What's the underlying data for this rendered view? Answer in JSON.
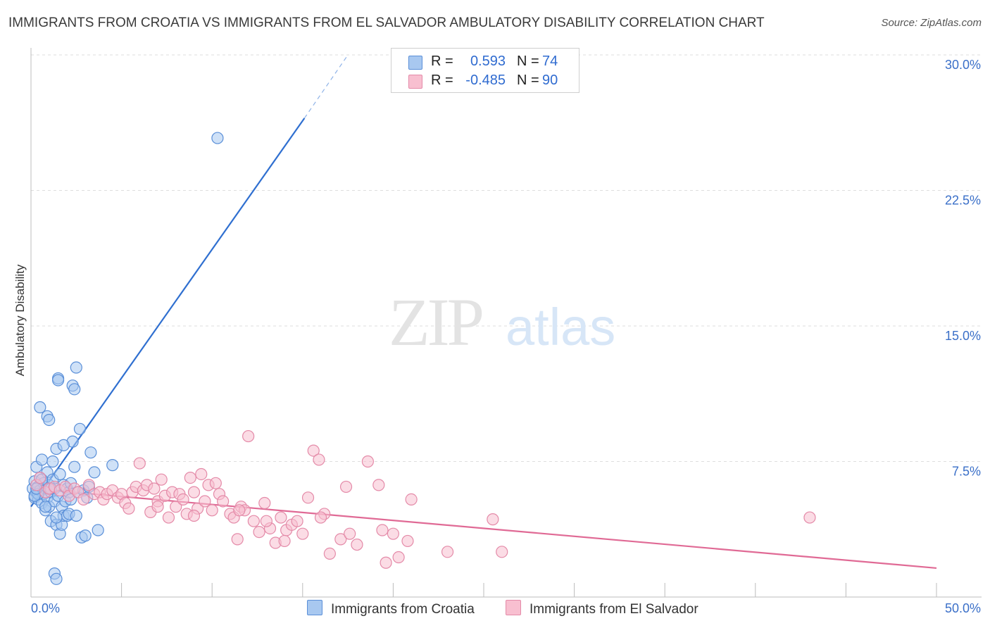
{
  "title": "IMMIGRANTS FROM CROATIA VS IMMIGRANTS FROM EL SALVADOR AMBULATORY DISABILITY CORRELATION CHART",
  "source": "Source: ZipAtlas.com",
  "watermark": {
    "zip": "ZIP",
    "atlas": "atlas"
  },
  "legend_stats": [
    {
      "r_label": "R =",
      "r_value": "0.593",
      "n_label": "N =",
      "n_value": "74",
      "color": "#a8c8f0",
      "border": "#5a8fd8"
    },
    {
      "r_label": "R =",
      "r_value": "-0.485",
      "n_label": "N =",
      "n_value": "90",
      "color": "#f8bfd0",
      "border": "#e48aa8"
    }
  ],
  "bottom_legend": [
    {
      "label": "Immigrants from Croatia",
      "color": "#a8c8f0",
      "border": "#5a8fd8"
    },
    {
      "label": "Immigrants from El Salvador",
      "color": "#f8bfd0",
      "border": "#e48aa8"
    }
  ],
  "chart_data": {
    "type": "scatter",
    "title": "IMMIGRANTS FROM CROATIA VS IMMIGRANTS FROM EL SALVADOR AMBULATORY DISABILITY CORRELATION CHART",
    "xlabel": "",
    "ylabel": "Ambulatory Disability",
    "xlim": [
      0,
      50
    ],
    "ylim": [
      0,
      30
    ],
    "x_tick_labels": [
      "0.0%",
      "50.0%"
    ],
    "y_ticks": [
      7.5,
      15,
      22.5,
      30
    ],
    "y_tick_labels": [
      "7.5%",
      "15.0%",
      "22.5%",
      "30.0%"
    ],
    "grid": true,
    "legend_position": "top-center",
    "series": [
      {
        "name": "Immigrants from Croatia",
        "color": "#5a8fd8",
        "fill": "#a8c8f0",
        "trend": {
          "x": [
            0,
            15.1
          ],
          "y": [
            5.0,
            26.5
          ],
          "dashed_to": [
            17.5,
            30.0
          ]
        },
        "points": [
          [
            0.1,
            6.0
          ],
          [
            0.2,
            5.5
          ],
          [
            0.2,
            6.4
          ],
          [
            0.3,
            5.8
          ],
          [
            0.3,
            7.2
          ],
          [
            0.4,
            6.1
          ],
          [
            0.4,
            5.4
          ],
          [
            0.5,
            6.6
          ],
          [
            0.5,
            5.9
          ],
          [
            0.6,
            5.2
          ],
          [
            0.6,
            7.6
          ],
          [
            0.7,
            6.3
          ],
          [
            0.7,
            5.7
          ],
          [
            0.8,
            4.8
          ],
          [
            0.8,
            6.0
          ],
          [
            0.9,
            5.5
          ],
          [
            0.9,
            6.9
          ],
          [
            1.0,
            5.0
          ],
          [
            1.0,
            6.2
          ],
          [
            1.1,
            4.2
          ],
          [
            1.1,
            5.8
          ],
          [
            1.2,
            6.5
          ],
          [
            1.2,
            7.5
          ],
          [
            1.3,
            5.3
          ],
          [
            1.3,
            6.0
          ],
          [
            1.4,
            4.0
          ],
          [
            1.4,
            8.2
          ],
          [
            1.5,
            5.6
          ],
          [
            1.5,
            12.1
          ],
          [
            1.6,
            3.5
          ],
          [
            1.6,
            6.8
          ],
          [
            1.7,
            4.0
          ],
          [
            1.7,
            5.0
          ],
          [
            1.8,
            4.5
          ],
          [
            1.8,
            6.2
          ],
          [
            1.9,
            5.3
          ],
          [
            2.0,
            4.5
          ],
          [
            2.0,
            6.0
          ],
          [
            2.1,
            4.6
          ],
          [
            2.1,
            5.8
          ],
          [
            2.2,
            5.4
          ],
          [
            2.2,
            6.3
          ],
          [
            2.3,
            11.7
          ],
          [
            2.3,
            8.6
          ],
          [
            2.4,
            7.2
          ],
          [
            2.5,
            12.7
          ],
          [
            2.5,
            4.5
          ],
          [
            2.6,
            5.8
          ],
          [
            2.7,
            9.3
          ],
          [
            2.8,
            3.3
          ],
          [
            2.9,
            5.9
          ],
          [
            3.0,
            3.4
          ],
          [
            3.1,
            5.5
          ],
          [
            3.2,
            6.1
          ],
          [
            3.3,
            8.0
          ],
          [
            3.5,
            6.9
          ],
          [
            3.7,
            3.7
          ],
          [
            0.5,
            10.5
          ],
          [
            0.9,
            10.0
          ],
          [
            1.5,
            12.0
          ],
          [
            2.4,
            11.5
          ],
          [
            1.8,
            8.4
          ],
          [
            1.0,
            9.8
          ],
          [
            0.4,
            5.7
          ],
          [
            0.2,
            5.6
          ],
          [
            0.6,
            6.5
          ],
          [
            1.3,
            1.3
          ],
          [
            1.4,
            4.4
          ],
          [
            0.8,
            5.0
          ],
          [
            1.1,
            6.0
          ],
          [
            1.4,
            1.0
          ],
          [
            10.3,
            25.4
          ],
          [
            4.5,
            7.3
          ],
          [
            0.3,
            6.0
          ]
        ]
      },
      {
        "name": "Immigrants from El Salvador",
        "color": "#e48aa8",
        "fill": "#f8bfd0",
        "trend": {
          "x": [
            0,
            50
          ],
          "y": [
            6.0,
            1.6
          ]
        },
        "points": [
          [
            0.3,
            6.2
          ],
          [
            0.5,
            6.6
          ],
          [
            0.8,
            5.8
          ],
          [
            1.0,
            6.0
          ],
          [
            1.3,
            6.1
          ],
          [
            1.6,
            5.9
          ],
          [
            1.9,
            6.1
          ],
          [
            2.1,
            5.6
          ],
          [
            2.4,
            6.0
          ],
          [
            2.6,
            5.8
          ],
          [
            2.9,
            5.4
          ],
          [
            3.2,
            6.2
          ],
          [
            3.5,
            5.7
          ],
          [
            3.8,
            5.8
          ],
          [
            4.0,
            5.4
          ],
          [
            4.2,
            5.7
          ],
          [
            4.5,
            5.9
          ],
          [
            4.8,
            5.5
          ],
          [
            5.0,
            5.7
          ],
          [
            5.2,
            5.2
          ],
          [
            5.4,
            4.9
          ],
          [
            5.6,
            5.8
          ],
          [
            5.8,
            6.1
          ],
          [
            6.0,
            7.4
          ],
          [
            6.2,
            5.9
          ],
          [
            6.4,
            6.2
          ],
          [
            6.6,
            4.7
          ],
          [
            6.8,
            6.0
          ],
          [
            7.0,
            5.3
          ],
          [
            7.2,
            6.5
          ],
          [
            7.4,
            5.6
          ],
          [
            7.6,
            4.4
          ],
          [
            7.8,
            5.8
          ],
          [
            8.0,
            5.0
          ],
          [
            8.2,
            5.7
          ],
          [
            8.4,
            5.4
          ],
          [
            8.6,
            4.6
          ],
          [
            8.8,
            6.6
          ],
          [
            9.0,
            5.8
          ],
          [
            9.2,
            4.9
          ],
          [
            9.4,
            6.8
          ],
          [
            9.6,
            5.3
          ],
          [
            9.8,
            6.2
          ],
          [
            10.0,
            4.8
          ],
          [
            10.2,
            6.3
          ],
          [
            10.4,
            5.7
          ],
          [
            10.6,
            5.3
          ],
          [
            11.0,
            4.6
          ],
          [
            11.2,
            4.4
          ],
          [
            11.4,
            3.2
          ],
          [
            11.6,
            5.0
          ],
          [
            11.8,
            4.8
          ],
          [
            12.0,
            8.9
          ],
          [
            12.3,
            4.2
          ],
          [
            12.6,
            3.6
          ],
          [
            12.9,
            5.2
          ],
          [
            13.2,
            3.8
          ],
          [
            13.5,
            3.0
          ],
          [
            13.8,
            4.4
          ],
          [
            14.1,
            3.7
          ],
          [
            14.4,
            4.0
          ],
          [
            14.7,
            4.2
          ],
          [
            15.0,
            3.5
          ],
          [
            15.3,
            5.5
          ],
          [
            15.6,
            8.1
          ],
          [
            15.9,
            7.6
          ],
          [
            16.2,
            4.6
          ],
          [
            16.5,
            2.4
          ],
          [
            17.1,
            3.2
          ],
          [
            17.4,
            6.1
          ],
          [
            17.6,
            3.5
          ],
          [
            18.0,
            2.9
          ],
          [
            18.6,
            7.5
          ],
          [
            19.2,
            6.2
          ],
          [
            19.4,
            3.7
          ],
          [
            19.6,
            1.9
          ],
          [
            20.0,
            3.5
          ],
          [
            20.3,
            2.2
          ],
          [
            20.8,
            3.1
          ],
          [
            21.0,
            5.4
          ],
          [
            23.0,
            2.5
          ],
          [
            25.5,
            4.3
          ],
          [
            26.0,
            2.5
          ],
          [
            16.0,
            4.4
          ],
          [
            13.0,
            4.2
          ],
          [
            9.0,
            4.5
          ],
          [
            7.0,
            5.0
          ],
          [
            11.5,
            4.8
          ],
          [
            43.0,
            4.4
          ],
          [
            14.0,
            3.1
          ]
        ]
      }
    ]
  }
}
